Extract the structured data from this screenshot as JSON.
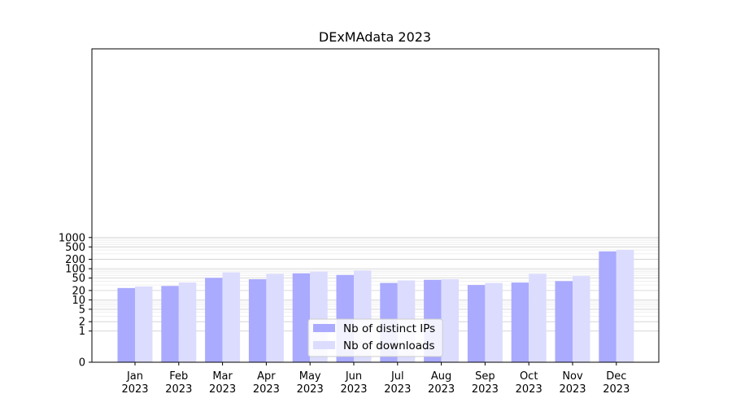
{
  "chart_data": {
    "type": "bar",
    "title": "DExMAdata 2023",
    "xlabel": "",
    "ylabel": "",
    "categories": [
      [
        "Jan",
        "2023"
      ],
      [
        "Feb",
        "2023"
      ],
      [
        "Mar",
        "2023"
      ],
      [
        "Apr",
        "2023"
      ],
      [
        "May",
        "2023"
      ],
      [
        "Jun",
        "2023"
      ],
      [
        "Jul",
        "2023"
      ],
      [
        "Aug",
        "2023"
      ],
      [
        "Sep",
        "2023"
      ],
      [
        "Oct",
        "2023"
      ],
      [
        "Nov",
        "2023"
      ],
      [
        "Dec",
        "2023"
      ]
    ],
    "series": [
      {
        "name": "Nb of distinct IPs",
        "color": "#aaaaff",
        "values": [
          24,
          28,
          51,
          46,
          71,
          63,
          35,
          44,
          30,
          36,
          40,
          360
        ]
      },
      {
        "name": "Nb of downloads",
        "color": "#dcdcff",
        "values": [
          27,
          36,
          76,
          68,
          81,
          87,
          42,
          46,
          35,
          68,
          58,
          400
        ]
      }
    ],
    "yscale": "symlog",
    "ylim": [
      0,
      1300
    ],
    "yticks": [
      0,
      1,
      2,
      5,
      10,
      20,
      50,
      100,
      200,
      500,
      1000
    ],
    "ytick_labels": [
      "0",
      "1",
      "2",
      "5",
      "10",
      "20",
      "50",
      "100",
      "200",
      "500",
      "1000"
    ],
    "grid": true,
    "legend_position": "bottom-center"
  }
}
